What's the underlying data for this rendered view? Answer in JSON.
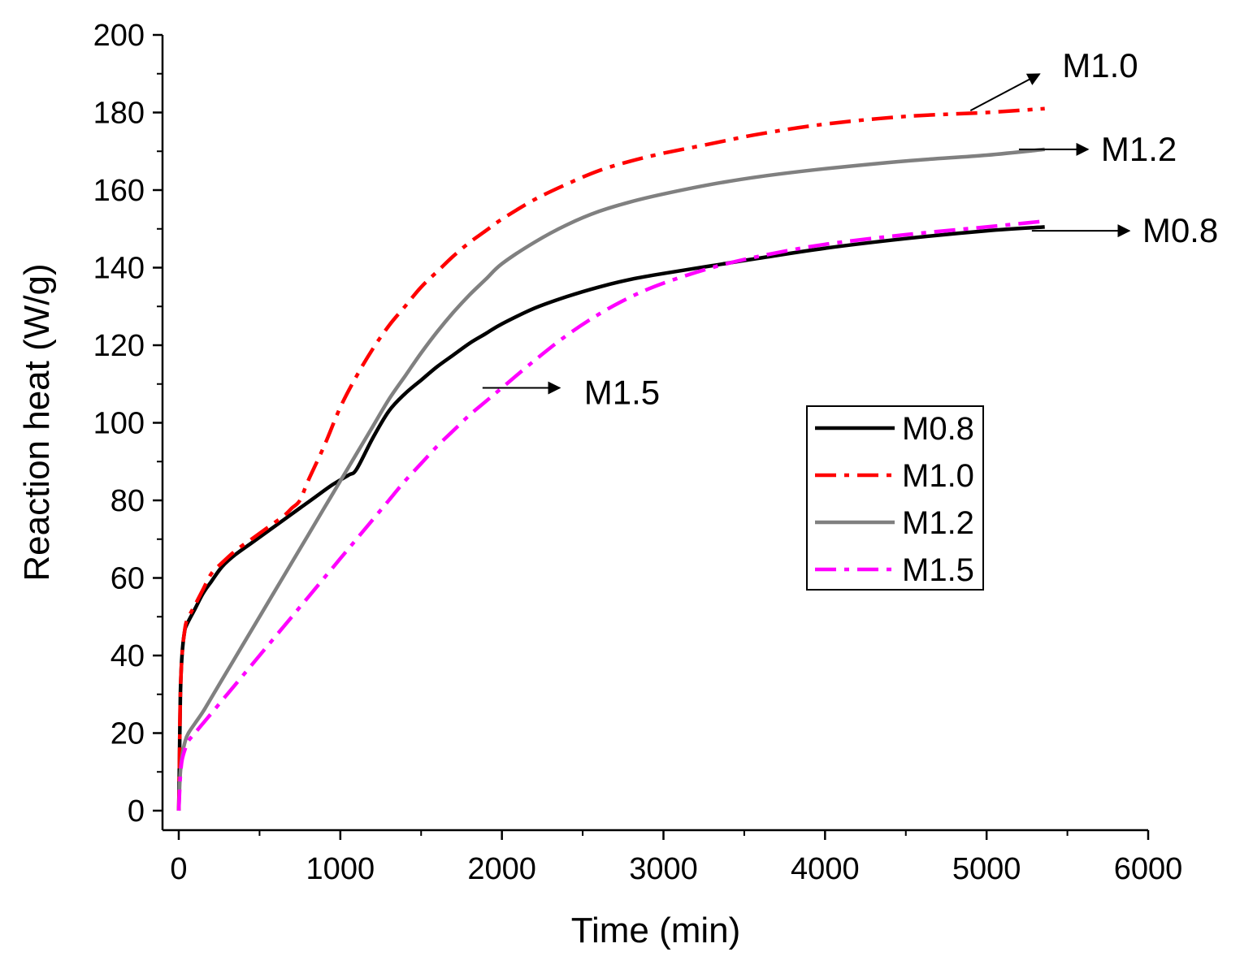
{
  "chart_data": {
    "type": "line",
    "title": "",
    "xlabel": "Time (min)",
    "ylabel": "Reaction heat (W/g)",
    "xlim": [
      0,
      6000
    ],
    "ylim": [
      0,
      200
    ],
    "xticks": [
      0,
      1000,
      2000,
      3000,
      4000,
      5000,
      6000
    ],
    "yticks": [
      0,
      20,
      40,
      60,
      80,
      100,
      120,
      140,
      160,
      180,
      200
    ],
    "legend_position": "center-right",
    "grid": false,
    "series": [
      {
        "name": "M0.8",
        "color": "#000000",
        "style": "solid",
        "x": [
          0,
          5,
          10,
          20,
          35,
          50,
          100,
          150,
          200,
          270,
          350,
          450,
          550,
          650,
          750,
          850,
          950,
          1050,
          1100,
          1200,
          1300,
          1400,
          1500,
          1600,
          1700,
          1800,
          1900,
          2000,
          2200,
          2400,
          2600,
          2800,
          3000,
          3300,
          3600,
          4000,
          4500,
          5000,
          5360
        ],
        "y": [
          0,
          15,
          30,
          40,
          46,
          48,
          52,
          56,
          59,
          63,
          66,
          69,
          72,
          75,
          78,
          81,
          84,
          86.5,
          88,
          96,
          103,
          107.5,
          111,
          114.5,
          117.5,
          120.5,
          123,
          125.5,
          129.5,
          132.5,
          135,
          137,
          138.5,
          140.5,
          142.5,
          145,
          147.5,
          149.5,
          150.5
        ]
      },
      {
        "name": "M1.0",
        "color": "#ff0000",
        "style": "dashdot",
        "x": [
          0,
          5,
          10,
          20,
          35,
          50,
          100,
          150,
          200,
          270,
          350,
          450,
          550,
          650,
          700,
          750,
          800,
          900,
          1000,
          1100,
          1200,
          1300,
          1400,
          1500,
          1600,
          1700,
          1800,
          1900,
          2000,
          2200,
          2400,
          2600,
          2800,
          3000,
          3300,
          3600,
          4000,
          4500,
          5000,
          5360
        ],
        "y": [
          0,
          15,
          30,
          40,
          46,
          49,
          53,
          57,
          61,
          64,
          67,
          70,
          73,
          76,
          78,
          80,
          85,
          94,
          104,
          112,
          119,
          125,
          130,
          135,
          139,
          143,
          146.5,
          149.5,
          152.5,
          157.5,
          161.5,
          165,
          167.5,
          169.5,
          172,
          174.5,
          177,
          179,
          180,
          181
        ]
      },
      {
        "name": "M1.2",
        "color": "#808080",
        "style": "solid",
        "x": [
          0,
          5,
          10,
          20,
          40,
          60,
          100,
          150,
          200,
          300,
          400,
          500,
          600,
          700,
          800,
          900,
          1000,
          1100,
          1200,
          1300,
          1400,
          1500,
          1600,
          1700,
          1800,
          1900,
          2000,
          2200,
          2400,
          2600,
          2800,
          3000,
          3300,
          3600,
          4000,
          4500,
          5000,
          5360
        ],
        "y": [
          0,
          6,
          10,
          14,
          18,
          20,
          22.5,
          25.5,
          29,
          36,
          43,
          50,
          57,
          64,
          71,
          78,
          85,
          92,
          99,
          106,
          112,
          118,
          123.5,
          128.5,
          133,
          137,
          141,
          146.5,
          151,
          154.5,
          157,
          159,
          161.5,
          163.5,
          165.5,
          167.5,
          169,
          170.5
        ]
      },
      {
        "name": "M1.5",
        "color": "#ff00ff",
        "style": "dashdot",
        "x": [
          0,
          5,
          10,
          20,
          40,
          60,
          100,
          150,
          200,
          300,
          400,
          500,
          600,
          700,
          800,
          900,
          1000,
          1100,
          1200,
          1300,
          1400,
          1500,
          1600,
          1700,
          1800,
          1900,
          2000,
          2200,
          2400,
          2600,
          2800,
          3000,
          3300,
          3600,
          4000,
          4500,
          5000,
          5360
        ],
        "y": [
          0,
          5,
          9,
          13,
          16,
          18,
          20,
          22.5,
          25,
          30,
          35,
          40,
          45,
          50,
          55,
          60,
          65,
          70,
          75,
          80,
          85,
          89.5,
          94,
          98,
          102,
          105.5,
          109,
          116,
          122.5,
          128,
          132.5,
          136,
          140,
          143,
          146,
          148.5,
          150.5,
          152
        ]
      }
    ],
    "annotations": [
      {
        "text": "M1.0",
        "series": "M1.0",
        "x": 4900,
        "y": 180.5,
        "arrow": "up-right"
      },
      {
        "text": "M1.2",
        "series": "M1.2",
        "x": 5200,
        "y": 170.5,
        "arrow": "right"
      },
      {
        "text": "M0.8",
        "series": "M0.8",
        "x": 5280,
        "y": 149.5,
        "arrow": "right"
      },
      {
        "text": "M1.5",
        "series": "M1.5",
        "x": 1880,
        "y": 109,
        "arrow": "right"
      }
    ]
  }
}
